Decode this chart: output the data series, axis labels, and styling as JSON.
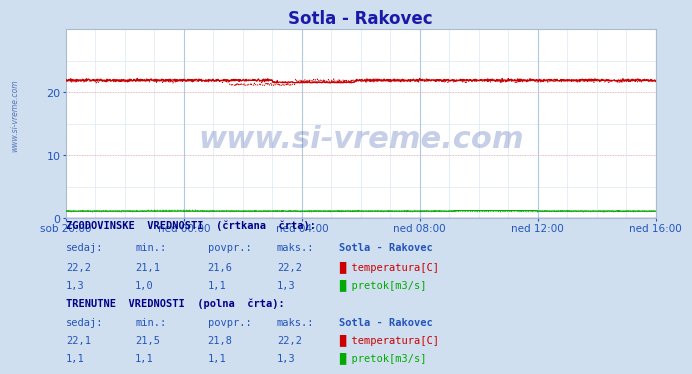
{
  "title": "Sotla - Rakovec",
  "title_color": "#1a1aaa",
  "bg_color": "#d0dff0",
  "plot_bg_color": "#ffffff",
  "grid_color": "#b0c8e0",
  "grid_minor_color": "#dce8f4",
  "grid_red_color": "#ffb0b0",
  "x_tick_labels": [
    "sob 20:00",
    "ned 00:00",
    "ned 04:00",
    "ned 08:00",
    "ned 12:00",
    "ned 16:00"
  ],
  "x_tick_positions": [
    0,
    288,
    576,
    864,
    1152,
    1440
  ],
  "n_points": 1441,
  "ylim": [
    0,
    30
  ],
  "yticks": [
    0,
    10,
    20
  ],
  "temp_color": "#cc0000",
  "flow_color": "#00aa00",
  "blue_line_color": "#4444cc",
  "watermark": "www.si-vreme.com",
  "watermark_color": "#3355aa",
  "sidebar_text": "www.si-vreme.com",
  "sidebar_color": "#5577bb",
  "text_color": "#2255bb",
  "hist_section_title": "ZGODOVINSKE  VREDNOSTI  (črtkana  črta):",
  "curr_section_title": "TRENUTNE  VREDNOSTI  (polna  črta):",
  "col_headers": [
    "sedaj:",
    "min.:",
    "povpr.:",
    "maks.:",
    "Sotla - Rakovec"
  ],
  "hist_temp_vals": [
    "22,2",
    "21,1",
    "21,6",
    "22,2"
  ],
  "hist_flow_vals": [
    "1,3",
    "1,0",
    "1,1",
    "1,3"
  ],
  "curr_temp_vals": [
    "22,1",
    "21,5",
    "21,8",
    "22,2"
  ],
  "curr_flow_vals": [
    "1,1",
    "1,1",
    "1,1",
    "1,3"
  ],
  "temp_label": "temperatura[C]",
  "flow_label": "pretok[m3/s]",
  "temp_hist_min": 21.1,
  "temp_hist_max": 22.2,
  "flow_hist_min": 1.0,
  "flow_hist_max": 1.3,
  "temp_curr_min": 21.5,
  "temp_curr_max": 22.2,
  "flow_curr_min": 1.1,
  "flow_curr_max": 1.3
}
